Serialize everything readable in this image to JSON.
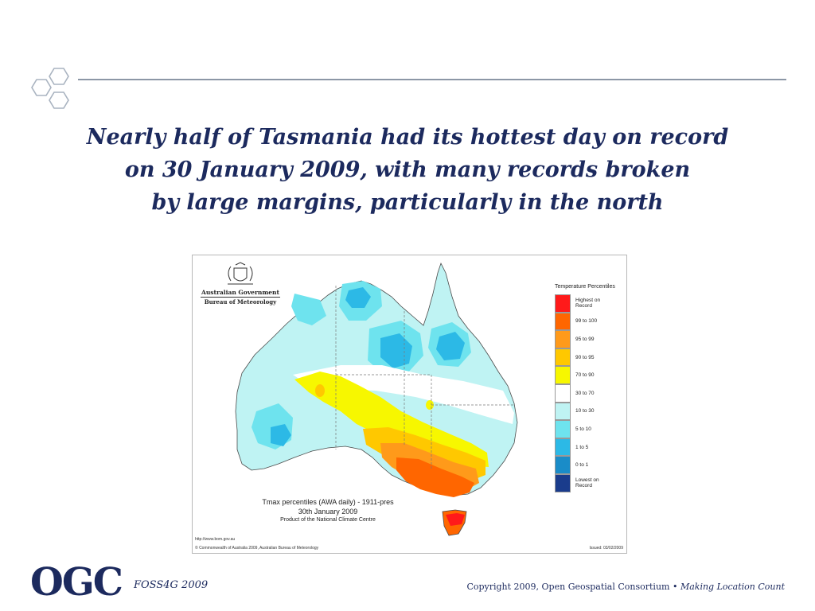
{
  "title_lines": [
    "Nearly half of Tasmania had its hottest day on record",
    "on 30 January 2009, with many records broken",
    "by large margins, particularly in the north"
  ],
  "map": {
    "agency": {
      "government": "Australian Government",
      "bureau": "Bureau of Meteorology",
      "crest_icon": "coat-of-arms-icon"
    },
    "legend": {
      "title": "Temperature Percentiles",
      "items": [
        {
          "label": "Highest on Record",
          "color": "#ff1a1a"
        },
        {
          "label": "99 to 100",
          "color": "#ff6600"
        },
        {
          "label": "95 to 99",
          "color": "#ff9a1a"
        },
        {
          "label": "90 to 95",
          "color": "#ffc800"
        },
        {
          "label": "70 to 90",
          "color": "#f7f700"
        },
        {
          "label": "30 to 70",
          "color": "#ffffff"
        },
        {
          "label": "10 to 30",
          "color": "#bff3f3"
        },
        {
          "label": "5 to 10",
          "color": "#6ee3ee"
        },
        {
          "label": "1 to 5",
          "color": "#2cb9e6"
        },
        {
          "label": "0 to 1",
          "color": "#1a8cc8"
        },
        {
          "label": "Lowest on Record",
          "color": "#1a3c8c"
        }
      ]
    },
    "caption": {
      "line1": "Tmax percentiles (AWA daily) - 1911-pres",
      "line2": "30th January 2009",
      "line3": "Product of the National Climate Centre"
    },
    "url": "http://www.bom.gov.au",
    "copyright": "© Commonwealth of Australia 2009, Australian Bureau of Meteorology",
    "issued": "Issued: 03/02/2009"
  },
  "footer": {
    "org_logo": "OGC",
    "event": "FOSS4G 2009",
    "copyright": "Copyright  2009, Open Geospatial Consortium •",
    "tagline": "Making Location Count"
  }
}
